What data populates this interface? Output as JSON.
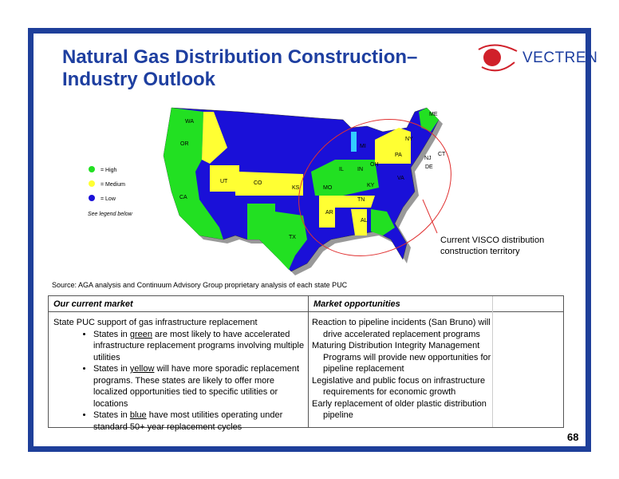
{
  "header": {
    "title_lines": [
      "Natural Gas Distribution Construction–",
      "Industry Outlook"
    ],
    "logo": "VECTREN"
  },
  "map": {
    "state_labels": [
      "WA",
      "OR",
      "CA",
      "UT",
      "CO",
      "KS",
      "MO",
      "IL",
      "IN",
      "OH",
      "KY",
      "TN",
      "AR",
      "AL",
      "MI",
      "NY",
      "PA",
      "VA",
      "NJ",
      "CT",
      "DE",
      "ME",
      "TX"
    ],
    "legend": {
      "items": [
        "= High",
        "= Medium",
        "= Low"
      ],
      "note": "See legend below"
    },
    "annotation_lines": [
      "Current VISCO distribution",
      "construction territory"
    ]
  },
  "source": "Source: AGA analysis and Continuum Advisory Group proprietary analysis of each state PUC",
  "table": {
    "headers": [
      "Our current market",
      "Market opportunities"
    ],
    "left": {
      "intro": "State PUC support of gas infrastructure replacement",
      "bullets": [
        [
          "States in ",
          "green",
          " are most likely to have accelerated infrastructure replacement programs involving multiple utilities"
        ],
        [
          "States in ",
          "yellow",
          " will have more sporadic replacement programs. These states are likely to offer more localized opportunities tied to specific utilities or locations"
        ],
        [
          "States in ",
          "blue",
          " have most utilities operating under standard 50+ year replacement cycles"
        ]
      ]
    },
    "right": [
      "Reaction to pipeline incidents (San Bruno) will drive accelerated replacement programs",
      "Maturing Distribution Integrity Management Programs will provide new opportunities for pipeline replacement",
      "Legislative and public focus on infrastructure requirements for economic growth",
      "Early replacement of older plastic distribution pipeline"
    ]
  },
  "page_number": "68"
}
